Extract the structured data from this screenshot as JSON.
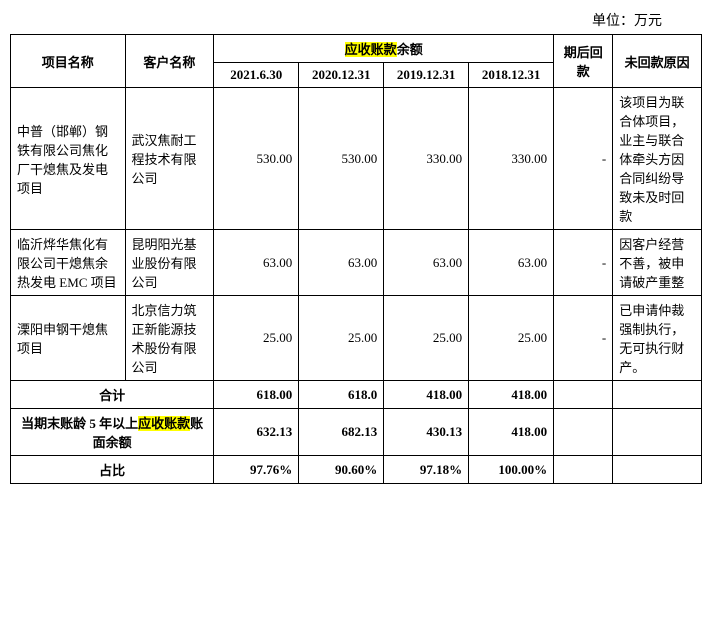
{
  "unit": "单位：万元",
  "headers": {
    "project": "项目名称",
    "client": "客户名称",
    "receivable": "应收账款",
    "balance": "余额",
    "d1": "2021.6.30",
    "d2": "2020.12.31",
    "d3": "2019.12.31",
    "d4": "2018.12.31",
    "after": "期后回款",
    "reason": "未回款原因"
  },
  "rows": [
    {
      "project": "中普（邯郸）钢铁有限公司焦化厂干熄焦及发电项目",
      "client": "武汉焦耐工程技术有限公司",
      "v1": "530.00",
      "v2": "530.00",
      "v3": "330.00",
      "v4": "330.00",
      "after": "-",
      "reason": "该项目为联合体项目，业主与联合体牵头方因合同纠纷导致未及时回款"
    },
    {
      "project": "临沂烨华焦化有限公司干熄焦余热发电 EMC 项目",
      "client": "昆明阳光基业股份有限公司",
      "v1": "63.00",
      "v2": "63.00",
      "v3": "63.00",
      "v4": "63.00",
      "after": "-",
      "reason": "因客户经营不善，被申请破产重整"
    },
    {
      "project": "溧阳申钢干熄焦项目",
      "client": "北京信力筑正新能源技术股份有限公司",
      "v1": "25.00",
      "v2": "25.00",
      "v3": "25.00",
      "v4": "25.00",
      "after": "-",
      "reason": "已申请仲裁强制执行，无可执行财产。"
    }
  ],
  "totals": {
    "label": "合计",
    "v1": "618.00",
    "v2": "618.0",
    "v3": "418.00",
    "v4": "418.00"
  },
  "aged": {
    "label_pre": "当期末账龄 5 年以上",
    "label_hl": "应收账款",
    "label_post": "账面余额",
    "v1": "632.13",
    "v2": "682.13",
    "v3": "430.13",
    "v4": "418.00"
  },
  "ratio": {
    "label": "占比",
    "v1": "97.76%",
    "v2": "90.60%",
    "v3": "97.18%",
    "v4": "100.00%"
  }
}
